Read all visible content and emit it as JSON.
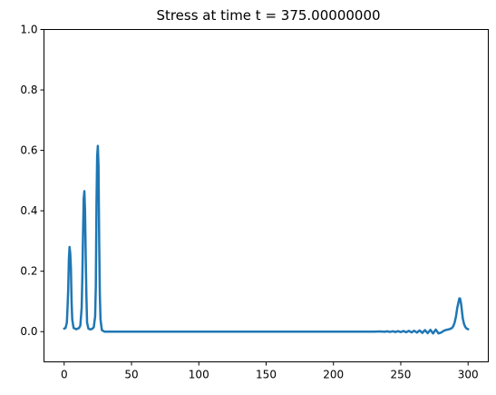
{
  "chart_data": {
    "type": "line",
    "title": "Stress at time t =   375.00000000",
    "xlabel": "",
    "ylabel": "",
    "xlim": [
      -15,
      315
    ],
    "ylim": [
      -0.1,
      1.0
    ],
    "grid": false,
    "colors": {
      "line": "#1f77b4",
      "axes": "#000000",
      "background": "#ffffff"
    },
    "xticks": [
      {
        "value": 0,
        "label": "0"
      },
      {
        "value": 50,
        "label": "50"
      },
      {
        "value": 100,
        "label": "100"
      },
      {
        "value": 150,
        "label": "150"
      },
      {
        "value": 200,
        "label": "200"
      },
      {
        "value": 250,
        "label": "250"
      },
      {
        "value": 300,
        "label": "300"
      }
    ],
    "yticks": [
      {
        "value": 0.0,
        "label": "0.0"
      },
      {
        "value": 0.2,
        "label": "0.2"
      },
      {
        "value": 0.4,
        "label": "0.4"
      },
      {
        "value": 0.6,
        "label": "0.6"
      },
      {
        "value": 0.8,
        "label": "0.8"
      },
      {
        "value": 1.0,
        "label": "1.0"
      }
    ],
    "series": [
      {
        "x": [
          0,
          1,
          2,
          2.5,
          3,
          3.5,
          4,
          4.5,
          5,
          5.5,
          6,
          7,
          8,
          9,
          10,
          11,
          12,
          13,
          13.5,
          14,
          14.5,
          15,
          15.5,
          16,
          16.5,
          17,
          18,
          19,
          20,
          21,
          22,
          23,
          23.5,
          24,
          24.5,
          25,
          25.5,
          26,
          26.5,
          27,
          28,
          30,
          50,
          100,
          150,
          200,
          230,
          235,
          238,
          240,
          242,
          244,
          246,
          248,
          250,
          252,
          254,
          256,
          258,
          260,
          262,
          264,
          266,
          268,
          270,
          272,
          274,
          276,
          278,
          280,
          282,
          284,
          286,
          288,
          289,
          290,
          291,
          292,
          293,
          293.5,
          294,
          294.5,
          295,
          295.5,
          296,
          297,
          298,
          299,
          300
        ],
        "y": [
          0.01,
          0.012,
          0.03,
          0.08,
          0.14,
          0.24,
          0.28,
          0.26,
          0.21,
          0.1,
          0.04,
          0.012,
          0.01,
          0.008,
          0.01,
          0.012,
          0.02,
          0.08,
          0.18,
          0.32,
          0.44,
          0.465,
          0.4,
          0.25,
          0.12,
          0.03,
          0.01,
          0.008,
          0.008,
          0.01,
          0.015,
          0.05,
          0.15,
          0.42,
          0.58,
          0.615,
          0.55,
          0.3,
          0.12,
          0.04,
          0.005,
          0.0,
          0.0,
          0.0,
          0.0,
          0.0,
          0.0,
          0.0005,
          -0.0005,
          0.001,
          -0.001,
          0.0012,
          -0.0012,
          0.0015,
          -0.0015,
          0.002,
          -0.002,
          0.0025,
          -0.0025,
          0.003,
          -0.003,
          0.004,
          -0.004,
          0.005,
          -0.005,
          0.006,
          -0.006,
          0.007,
          -0.006,
          -0.003,
          0.003,
          0.006,
          0.008,
          0.012,
          0.018,
          0.03,
          0.05,
          0.08,
          0.1,
          0.11,
          0.11,
          0.1,
          0.085,
          0.065,
          0.045,
          0.025,
          0.015,
          0.01,
          0.008
        ]
      }
    ]
  }
}
